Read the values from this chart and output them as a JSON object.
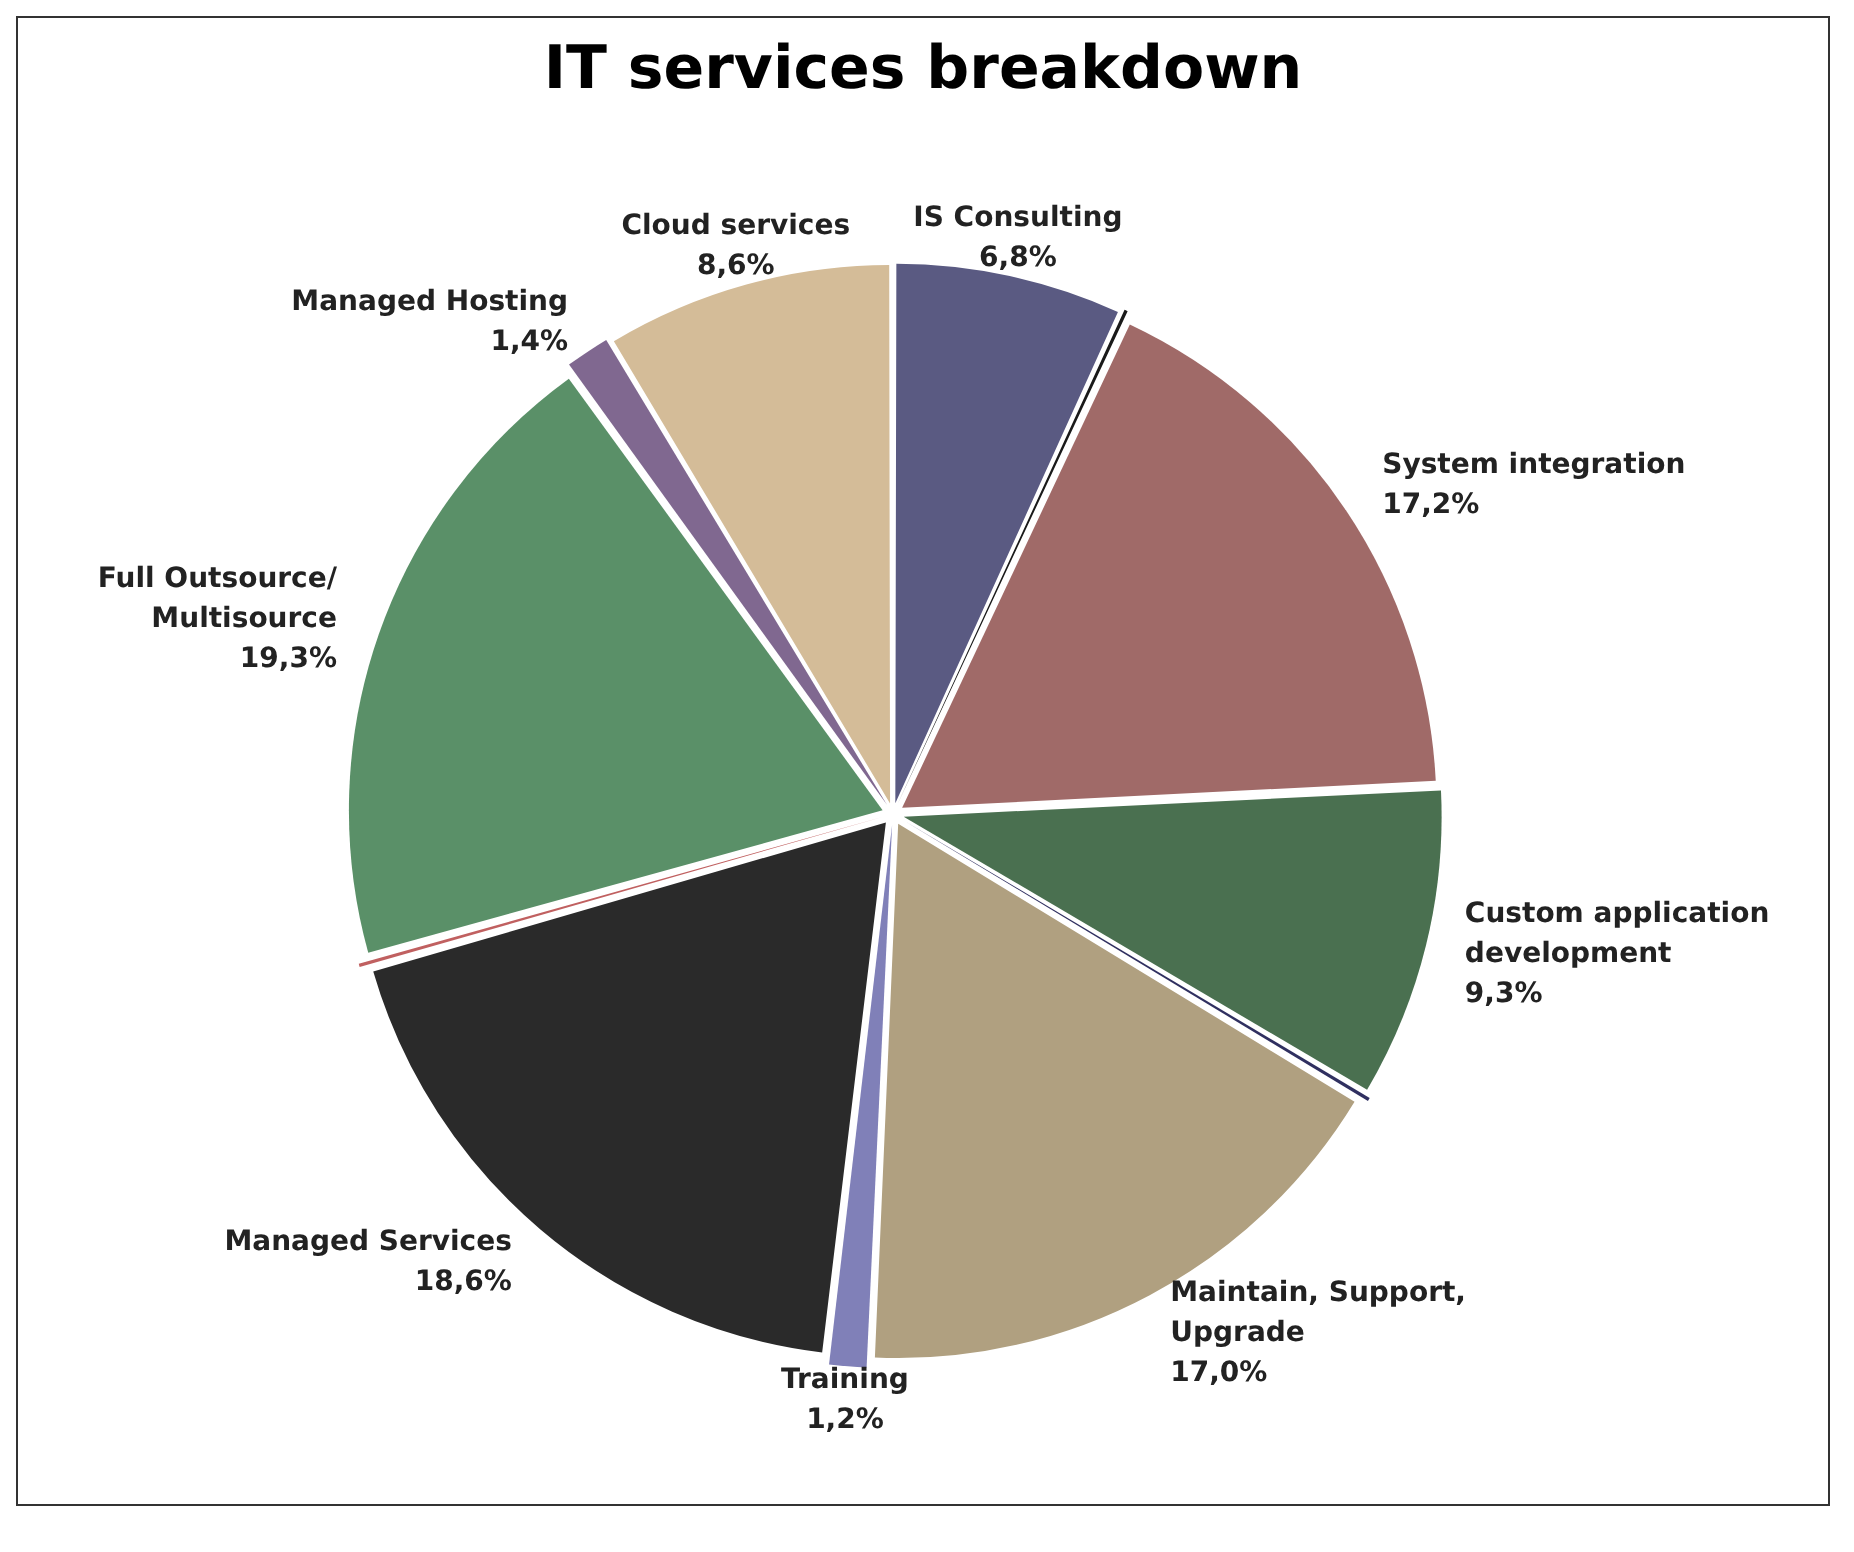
{
  "chart_data": {
    "type": "pie",
    "title": "IT services breakdown",
    "categories": [
      "IS Consulting",
      null,
      "System integration",
      "Custom application development",
      null,
      "Maintain, Support, Upgrade",
      "Training",
      "Managed Services",
      null,
      "Full Outsource/Multisource",
      "Managed Hosting",
      "Cloud services"
    ],
    "values": [
      6.8,
      0.2,
      17.2,
      9.3,
      0.2,
      17.0,
      1.2,
      18.6,
      0.2,
      19.3,
      1.4,
      8.6
    ],
    "value_labels": [
      "6,8%",
      null,
      "17,2%",
      "9,3%",
      null,
      "17,0%",
      "1,2%",
      "18,6%",
      null,
      "19,3%",
      "1,4%",
      "8,6%"
    ],
    "colors": [
      "#5a5a82",
      "#1a1a1a",
      "#a06a68",
      "#4a7050",
      "#303060",
      "#b0a080",
      "#8080b8",
      "#2a2a2a",
      "#c06060",
      "#5a9068",
      "#806890",
      "#d4bc98"
    ],
    "legend": false
  }
}
